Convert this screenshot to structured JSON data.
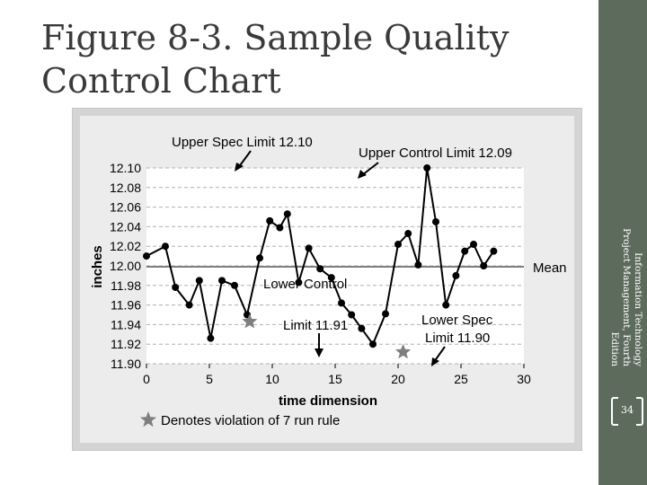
{
  "slide": {
    "title": "Figure 8-3. Sample Quality Control Chart",
    "sidebar_line1": "Information Technology",
    "sidebar_line2": "Project Management, Fourth",
    "sidebar_line3": "Edition",
    "page_number": "34"
  },
  "colors": {
    "background": "#ffffff",
    "sidebar": "#5d6b5c",
    "chart_background": "#d4d4d4",
    "plot_background": "#ffffff",
    "line": "#000000",
    "mean_line": "#7f7f7f",
    "star": "#7f7f7f"
  },
  "chart_data": {
    "type": "line",
    "xlabel": "time dimension",
    "ylabel": "inches",
    "xlim": [
      0,
      30
    ],
    "ylim": [
      11.9,
      12.1
    ],
    "x_ticks": [
      0,
      5,
      10,
      15,
      20,
      25,
      30
    ],
    "y_ticks": [
      "12.10",
      "12.08",
      "12.06",
      "12.04",
      "12.02",
      "12.00",
      "11.98",
      "11.96",
      "11.94",
      "11.92",
      "11.90"
    ],
    "grid": "horizontal dashed",
    "series": [
      {
        "x": [
          0,
          1.5,
          2.3,
          3.4,
          4.2,
          5.1,
          6.0,
          7.0,
          8.0,
          9.0,
          9.8,
          10.6,
          11.2,
          12.1,
          12.9,
          13.8,
          14.7,
          15.5,
          16.3,
          17.1,
          18.0,
          19.0,
          20.0,
          20.8,
          21.6,
          22.3,
          23.0,
          23.8,
          24.6,
          25.3,
          26.0,
          26.8,
          27.6
        ],
        "y": [
          12.01,
          12.02,
          11.978,
          11.96,
          11.985,
          11.926,
          11.985,
          11.98,
          11.95,
          12.008,
          12.046,
          12.039,
          12.053,
          11.983,
          12.018,
          11.997,
          11.988,
          11.962,
          11.95,
          11.936,
          11.92,
          11.951,
          12.022,
          12.033,
          12.001,
          12.1,
          12.045,
          11.96,
          11.99,
          12.015,
          12.022,
          12.0,
          12.015
        ]
      }
    ],
    "mean_label": "Mean",
    "annotations": {
      "upper_spec": "Upper Spec Limit 12.10",
      "upper_control": "Upper Control Limit 12.09",
      "lower_control_1": "Lower Control",
      "lower_control_2": "Limit 11.91",
      "lower_spec_1": "Lower Spec",
      "lower_spec_2": "Limit 11.90",
      "legend_star": "Denotes violation of 7 run rule"
    },
    "star_points": [
      {
        "x": 8.2,
        "y": 11.943
      },
      {
        "x": 20.4,
        "y": 11.912
      }
    ]
  }
}
